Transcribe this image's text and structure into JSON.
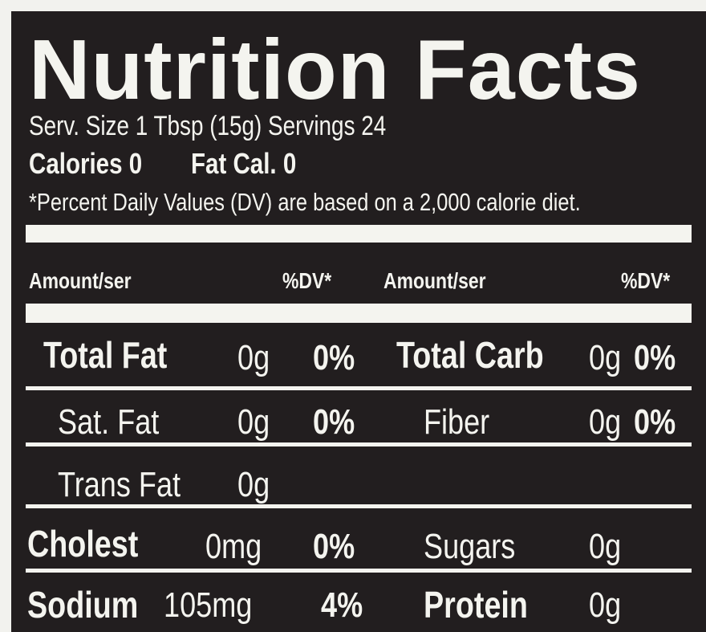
{
  "title": "Nutrition Facts",
  "serving": "Serv. Size 1 Tbsp (15g)  Servings 24",
  "calories": "Calories 0",
  "fat_cal": "Fat Cal. 0",
  "footnote": "*Percent Daily Values (DV) are based on a 2,000 calorie diet.",
  "header": {
    "amount1": "Amount/ser",
    "dv1": "%DV*",
    "amount2": "Amount/ser",
    "dv2": "%DV*"
  },
  "rows": [
    {
      "left": {
        "label": "Total Fat",
        "amount": "0g",
        "dv": "0%"
      },
      "right": {
        "label": "Total Carb",
        "amount": "0g",
        "dv": "0%"
      }
    },
    {
      "left": {
        "label": "Sat. Fat",
        "amount": "0g",
        "dv": "0%"
      },
      "right": {
        "label": "Fiber",
        "amount": "0g",
        "dv": "0%"
      }
    },
    {
      "left": {
        "label": "Trans Fat",
        "amount": "0g"
      }
    },
    {
      "left": {
        "label": "Cholest",
        "amount": "0mg",
        "dv": "0%"
      },
      "right": {
        "label": "Sugars",
        "amount": "0g"
      }
    },
    {
      "left": {
        "label": "Sodium",
        "amount": "105mg",
        "dv": "4%"
      },
      "right": {
        "label": "Protein",
        "amount": "0g"
      }
    }
  ]
}
